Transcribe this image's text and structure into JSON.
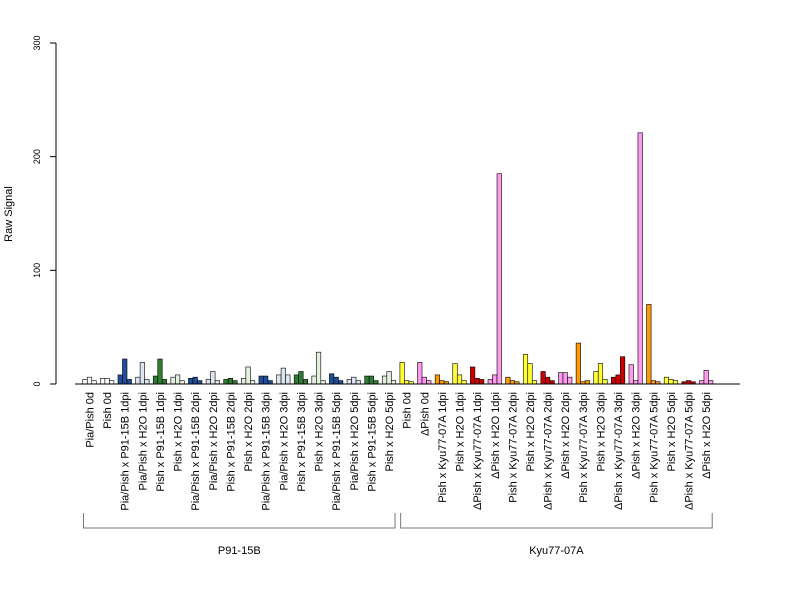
{
  "chart_data": {
    "type": "bar",
    "ylabel": "Raw Signal",
    "ylim": [
      0,
      300
    ],
    "yticks": [
      0,
      100,
      200,
      300
    ],
    "categories": [
      "Pia/Pish 0d",
      "Pish 0d",
      "Pia/Pish x P91-15B 1dpi",
      "Pia/Pish x H2O 1dpi",
      "Pish x P91-15B 1dpi",
      "Pish x H2O 1dpi",
      "Pia/Pish x P91-15B 2dpi",
      "Pia/Pish x H2O 2dpi",
      "Pish x P91-15B 2dpi",
      "Pish x H2O 2dpi",
      "Pia/Pish x P91-15B 3dpi",
      "Pia/Pish x H2O 3dpi",
      "Pish x P91-15B 3dpi",
      "Pish x H2O 3dpi",
      "Pia/Pish x P91-15B 5dpi",
      "Pia/Pish x H2O 5dpi",
      "Pish x P91-15B 5dpi",
      "Pish x H2O 5dpi",
      "Pish 0d",
      "ΔPish 0d",
      "Pish x Kyu77-07A 1dpi",
      "Pish x H2O 1dpi",
      "ΔPish x Kyu77-07A 1dpi",
      "ΔPish x H2O 1dpi",
      "Pish x Kyu77-07A 2dpi",
      "Pish x H2O 2dpi",
      "ΔPish x Kyu77-07A 2dpi",
      "ΔPish x H2O 2dpi",
      "Pish x Kyu77-07A 3dpi",
      "Pish x H2O 3dpi",
      "ΔPish x Kyu77-07A 3dpi",
      "ΔPish x H2O 3dpi",
      "Pish x Kyu77-07A 5dpi",
      "Pish x H2O 5dpi",
      "ΔPish x Kyu77-07A 5dpi",
      "ΔPish x H2O 5dpi"
    ],
    "colors": [
      "#ffffff",
      "#ffffff",
      "#1f4e9c",
      "#dde6f0",
      "#2e7d32",
      "#e4efe0",
      "#1f4e9c",
      "#dde6f0",
      "#2e7d32",
      "#e4efe0",
      "#1f4e9c",
      "#dde6f0",
      "#2e7d32",
      "#e4efe0",
      "#1f4e9c",
      "#dde6f0",
      "#2e7d32",
      "#e4efe0",
      "#ffff33",
      "#ff99ee",
      "#ff9900",
      "#ffff33",
      "#cc0000",
      "#ff99ee",
      "#ff9900",
      "#ffff33",
      "#cc0000",
      "#ff99ee",
      "#ff9900",
      "#ffff33",
      "#cc0000",
      "#ff99ee",
      "#ff9900",
      "#ffff33",
      "#cc0000",
      "#ff99ee"
    ],
    "values": [
      [
        4,
        6,
        3
      ],
      [
        5,
        5,
        3
      ],
      [
        8,
        22,
        4
      ],
      [
        6,
        19,
        4
      ],
      [
        7,
        22,
        4
      ],
      [
        6,
        8,
        3
      ],
      [
        5,
        6,
        3
      ],
      [
        4,
        11,
        3
      ],
      [
        4,
        5,
        3
      ],
      [
        5,
        15,
        3
      ],
      [
        7,
        7,
        3
      ],
      [
        8,
        14,
        8
      ],
      [
        8,
        11,
        4
      ],
      [
        7,
        28,
        3
      ],
      [
        9,
        6,
        3
      ],
      [
        4,
        6,
        3
      ],
      [
        7,
        7,
        3
      ],
      [
        7,
        11,
        3
      ],
      [
        19,
        3,
        2
      ],
      [
        19,
        6,
        3
      ],
      [
        8,
        3,
        2
      ],
      [
        18,
        8,
        3
      ],
      [
        15,
        5,
        4
      ],
      [
        4,
        8,
        185
      ],
      [
        6,
        3,
        2
      ],
      [
        26,
        18,
        3
      ],
      [
        11,
        6,
        3
      ],
      [
        10,
        10,
        6
      ],
      [
        36,
        2,
        3
      ],
      [
        11,
        18,
        4
      ],
      [
        6,
        8,
        24
      ],
      [
        17,
        3,
        221
      ],
      [
        70,
        3,
        2
      ],
      [
        6,
        4,
        3
      ],
      [
        2,
        3,
        2
      ],
      [
        3,
        12,
        3
      ]
    ],
    "groups": [
      {
        "name": "P91-15B",
        "from": 0,
        "to": 17
      },
      {
        "name": "Kyu77-07A",
        "from": 18,
        "to": 35
      }
    ]
  }
}
